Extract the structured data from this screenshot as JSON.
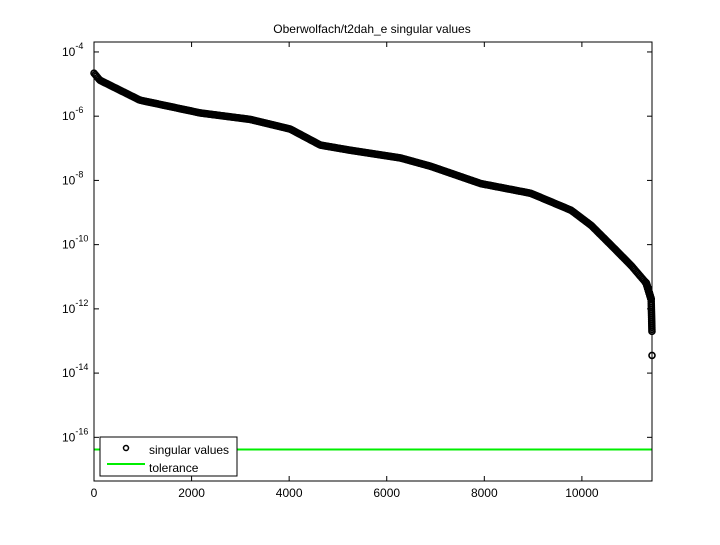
{
  "chart_data": {
    "type": "scatter",
    "title": "Oberwolfach/t2dah_e singular values",
    "xlabel": "",
    "ylabel": "",
    "xscale": "linear",
    "yscale": "log",
    "xlim": [
      0,
      11437
    ],
    "ylim_exponent": [
      -17.36,
      -3.69
    ],
    "x_ticks": [
      0,
      2000,
      4000,
      6000,
      8000,
      10000
    ],
    "x_tick_labels": [
      "0",
      "2000",
      "4000",
      "6000",
      "8000",
      "10000"
    ],
    "y_ticks_exponent": [
      -4,
      -6,
      -8,
      -10,
      -12,
      -14,
      -16
    ],
    "y_tick_base": "10",
    "y_tick_exponent_labels": [
      "-4",
      "-6",
      "-8",
      "-10",
      "-12",
      "-14",
      "-16"
    ],
    "grid": false,
    "legend_position": "bottom-left",
    "series": [
      {
        "name": "singular values",
        "marker": "circle",
        "color": "#000000",
        "note_points": "index vs log10(singular value), key points of curve",
        "x": [
          0,
          120,
          940,
          2180,
          3200,
          4020,
          4640,
          5250,
          6280,
          6900,
          7930,
          8950,
          9780,
          10190,
          10600,
          11010,
          11320,
          11420,
          11436,
          11437
        ],
        "log10_y": [
          -4.66,
          -4.88,
          -5.5,
          -5.9,
          -6.1,
          -6.4,
          -6.9,
          -7.06,
          -7.3,
          -7.56,
          -8.1,
          -8.4,
          -8.93,
          -9.4,
          -10.02,
          -10.65,
          -11.2,
          -11.7,
          -12.7,
          -13.45
        ]
      },
      {
        "name": "tolerance",
        "color": "#00ee00",
        "log10_y": -16.38
      }
    ]
  }
}
